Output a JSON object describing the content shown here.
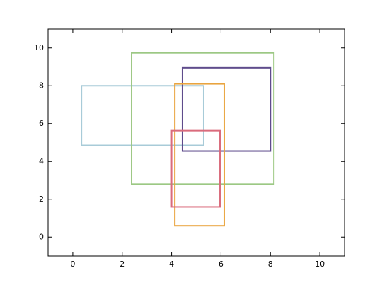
{
  "chart_data": {
    "type": "rectangle",
    "series": [
      {
        "color": "#a8cbd8",
        "x": [
          0.35,
          5.3
        ],
        "y": [
          4.85,
          8.0
        ]
      },
      {
        "color": "#9cc884",
        "x": [
          2.38,
          8.14
        ],
        "y": [
          2.8,
          9.74
        ]
      },
      {
        "color": "#5f4c8c",
        "x": [
          4.44,
          8.0
        ],
        "y": [
          4.55,
          8.95
        ]
      },
      {
        "color": "#e9a43e",
        "x": [
          4.13,
          6.13
        ],
        "y": [
          0.6,
          8.1
        ]
      },
      {
        "color": "#da6b7c",
        "x": [
          4.0,
          5.96
        ],
        "y": [
          1.6,
          5.63
        ]
      }
    ],
    "xlim": [
      -1,
      11
    ],
    "ylim": [
      -1,
      11
    ],
    "xticks": [
      0,
      2,
      4,
      6,
      8,
      10
    ],
    "yticks": [
      0,
      2,
      4,
      6,
      8,
      10
    ],
    "grid": false
  }
}
